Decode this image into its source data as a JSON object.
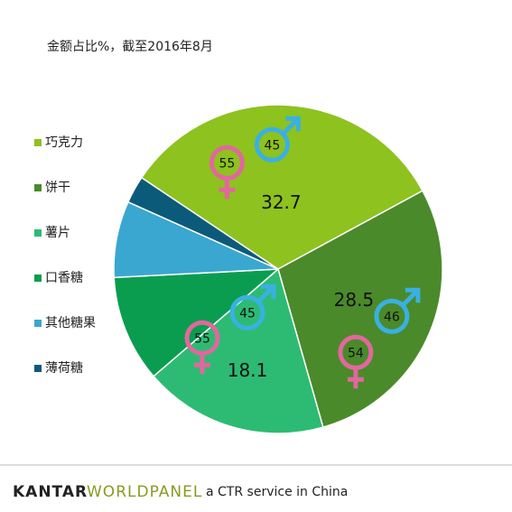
{
  "chart_data": {
    "type": "pie",
    "title": "金额占比%，截至2016年8月",
    "categories": [
      "巧克力",
      "饼干",
      "薯片",
      "口香糖",
      "其他糖果",
      "薄荷糖"
    ],
    "values": [
      32.7,
      28.5,
      18.1,
      10.5,
      7.5,
      2.7
    ],
    "value_labels": [
      "32.7",
      "28.5",
      "18.1",
      null,
      null,
      null
    ],
    "colors": [
      "#8dc21f",
      "#4a8a2a",
      "#2dbb73",
      "#0a9d4f",
      "#3aa7d0",
      "#0c5a7a"
    ],
    "gender": [
      {
        "male": 45,
        "female": 55
      },
      {
        "male": 46,
        "female": 54
      },
      {
        "male": 45,
        "female": 55
      },
      null,
      null,
      null
    ],
    "legend": "left"
  },
  "footer": {
    "brand": "KANTAR",
    "brand2": "WORLDPANEL",
    "tagline": "a CTR service in China"
  }
}
